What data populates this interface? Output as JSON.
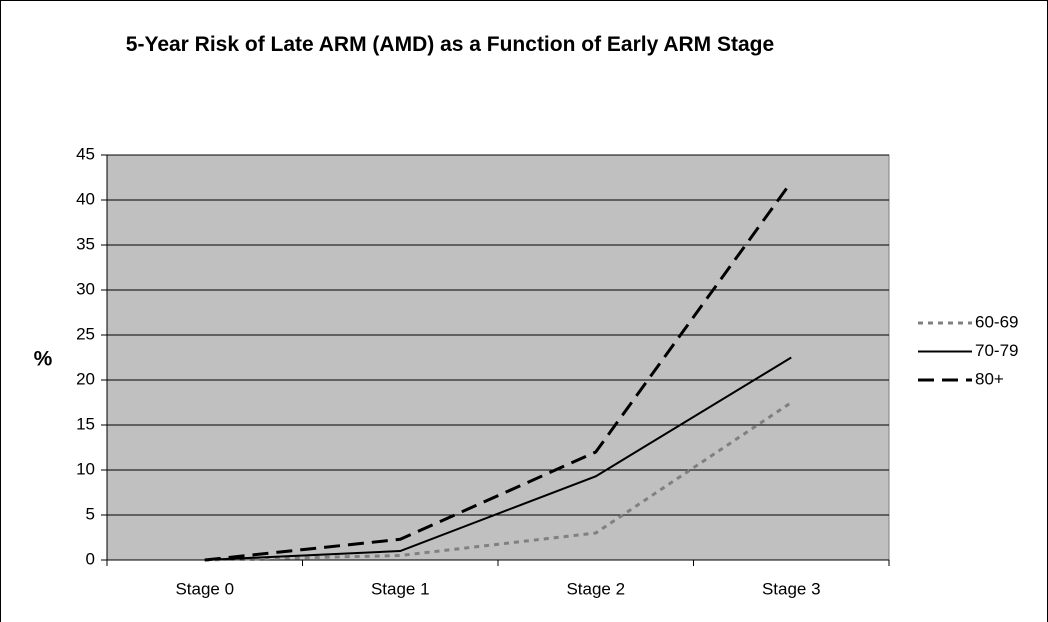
{
  "chart_data": {
    "type": "line",
    "title": "5-Year Risk of Late ARM (AMD) as a Function of Early ARM Stage",
    "ylabel": "%",
    "categories": [
      "Stage 0",
      "Stage 1",
      "Stage 2",
      "Stage 3"
    ],
    "series": [
      {
        "name": "60-69",
        "color": "#808080",
        "dash": "dotted",
        "values": [
          0,
          0.5,
          3,
          17.5
        ]
      },
      {
        "name": "70-79",
        "color": "#000000",
        "dash": "solid",
        "values": [
          0,
          1,
          9.3,
          22.5
        ]
      },
      {
        "name": "80+",
        "color": "#000000",
        "dash": "dashed",
        "values": [
          0,
          2.3,
          12,
          42
        ]
      }
    ],
    "ylim": [
      0,
      45
    ],
    "yticks": [
      0,
      5,
      10,
      15,
      20,
      25,
      30,
      35,
      40,
      45
    ],
    "grid": true,
    "legend": "right"
  }
}
